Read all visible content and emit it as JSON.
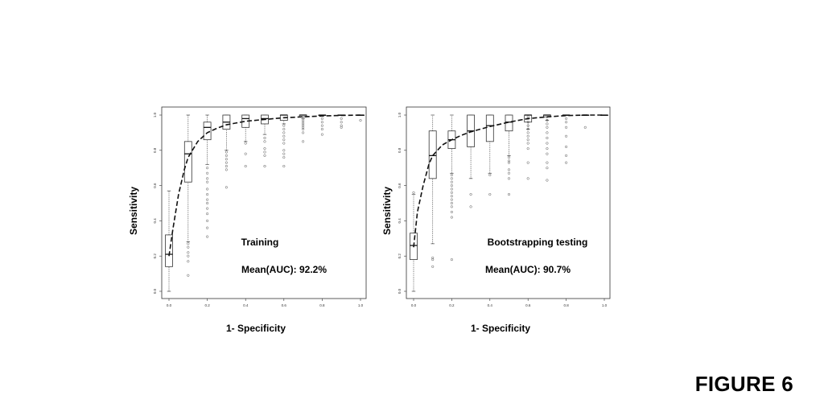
{
  "figure_label": "FIGURE 6",
  "chart_data": [
    {
      "type": "box",
      "title": "Training",
      "annotation": "Mean(AUC): 92.2%",
      "xlabel": "1- Specificity",
      "ylabel": "Sensitivity",
      "xlim": [
        0,
        1
      ],
      "ylim": [
        0,
        1
      ],
      "xticks": [
        "0.0",
        "0.2",
        "0.4",
        "0.6",
        "0.8",
        "1.0"
      ],
      "yticks": [
        "0.0",
        "0.2",
        "0.4",
        "0.6",
        "0.8",
        "1.0"
      ],
      "boxes": [
        {
          "x": 0.0,
          "q1": 0.14,
          "median": 0.21,
          "q3": 0.32,
          "whisker_low": 0.0,
          "whisker_high": 0.57,
          "outliers": []
        },
        {
          "x": 0.1,
          "q1": 0.62,
          "median": 0.78,
          "q3": 0.85,
          "whisker_low": 0.28,
          "whisker_high": 1.0,
          "outliers": [
            0.27,
            0.25,
            0.22,
            0.2,
            0.17,
            0.09
          ]
        },
        {
          "x": 0.2,
          "q1": 0.86,
          "median": 0.93,
          "q3": 0.96,
          "whisker_low": 0.72,
          "whisker_high": 1.0,
          "outliers": [
            0.7,
            0.67,
            0.64,
            0.62,
            0.58,
            0.55,
            0.52,
            0.5,
            0.47,
            0.44,
            0.4,
            0.36,
            0.31
          ]
        },
        {
          "x": 0.3,
          "q1": 0.92,
          "median": 0.96,
          "q3": 1.0,
          "whisker_low": 0.8,
          "whisker_high": 1.0,
          "outliers": [
            0.79,
            0.77,
            0.75,
            0.73,
            0.71,
            0.69,
            0.59
          ]
        },
        {
          "x": 0.4,
          "q1": 0.93,
          "median": 0.98,
          "q3": 1.0,
          "whisker_low": 0.85,
          "whisker_high": 1.0,
          "outliers": [
            0.84,
            0.78,
            0.71
          ]
        },
        {
          "x": 0.5,
          "q1": 0.95,
          "median": 0.98,
          "q3": 1.0,
          "whisker_low": 0.89,
          "whisker_high": 1.0,
          "outliers": [
            0.87,
            0.85,
            0.81,
            0.79,
            0.77,
            0.71
          ]
        },
        {
          "x": 0.6,
          "q1": 0.97,
          "median": 1.0,
          "q3": 1.0,
          "whisker_low": 0.95,
          "whisker_high": 1.0,
          "outliers": [
            0.94,
            0.92,
            0.9,
            0.88,
            0.86,
            0.84,
            0.8,
            0.78,
            0.76,
            0.71
          ]
        },
        {
          "x": 0.7,
          "q1": 0.99,
          "median": 1.0,
          "q3": 1.0,
          "whisker_low": 0.98,
          "whisker_high": 1.0,
          "outliers": [
            0.97,
            0.96,
            0.95,
            0.94,
            0.93,
            0.92,
            0.9,
            0.85
          ]
        },
        {
          "x": 0.8,
          "q1": 1.0,
          "median": 1.0,
          "q3": 1.0,
          "whisker_low": 1.0,
          "whisker_high": 1.0,
          "outliers": [
            0.98,
            0.96,
            0.94,
            0.92,
            0.89
          ]
        },
        {
          "x": 0.9,
          "q1": 1.0,
          "median": 1.0,
          "q3": 1.0,
          "whisker_low": 1.0,
          "whisker_high": 1.0,
          "outliers": [
            0.98,
            0.96,
            0.94,
            0.93
          ]
        },
        {
          "x": 1.0,
          "q1": 1.0,
          "median": 1.0,
          "q3": 1.0,
          "whisker_low": 1.0,
          "whisker_high": 1.0,
          "outliers": [
            0.97
          ]
        }
      ],
      "mean_curve": {
        "x": [
          0.0,
          0.02,
          0.05,
          0.08,
          0.1,
          0.15,
          0.2,
          0.25,
          0.3,
          0.35,
          0.4,
          0.5,
          0.6,
          0.7,
          0.8,
          0.9,
          1.0
        ],
        "y": [
          0.2,
          0.35,
          0.55,
          0.69,
          0.76,
          0.85,
          0.9,
          0.925,
          0.945,
          0.955,
          0.965,
          0.975,
          0.985,
          0.99,
          0.995,
          0.998,
          1.0
        ]
      }
    },
    {
      "type": "box",
      "title": "Bootstrapping testing",
      "annotation": "Mean(AUC): 90.7%",
      "xlabel": "1- Specificity",
      "ylabel": "Sensitivity",
      "xlim": [
        0,
        1
      ],
      "ylim": [
        0,
        1
      ],
      "xticks": [
        "0.0",
        "0.2",
        "0.4",
        "0.6",
        "0.8",
        "1.0"
      ],
      "yticks": [
        "0.0",
        "0.2",
        "0.4",
        "0.6",
        "0.8",
        "1.0"
      ],
      "boxes": [
        {
          "x": 0.0,
          "q1": 0.18,
          "median": 0.26,
          "q3": 0.33,
          "whisker_low": 0.0,
          "whisker_high": 0.55,
          "outliers": [
            0.56
          ]
        },
        {
          "x": 0.1,
          "q1": 0.64,
          "median": 0.77,
          "q3": 0.91,
          "whisker_low": 0.27,
          "whisker_high": 1.0,
          "outliers": [
            0.19,
            0.18,
            0.14
          ]
        },
        {
          "x": 0.2,
          "q1": 0.81,
          "median": 0.86,
          "q3": 0.91,
          "whisker_low": 0.67,
          "whisker_high": 1.0,
          "outliers": [
            0.66,
            0.64,
            0.62,
            0.6,
            0.58,
            0.56,
            0.54,
            0.52,
            0.5,
            0.48,
            0.45,
            0.42,
            0.18
          ]
        },
        {
          "x": 0.3,
          "q1": 0.82,
          "median": 0.91,
          "q3": 1.0,
          "whisker_low": 0.64,
          "whisker_high": 1.0,
          "outliers": [
            0.55,
            0.48
          ]
        },
        {
          "x": 0.4,
          "q1": 0.85,
          "median": 0.94,
          "q3": 1.0,
          "whisker_low": 0.67,
          "whisker_high": 1.0,
          "outliers": [
            0.66,
            0.55
          ]
        },
        {
          "x": 0.5,
          "q1": 0.91,
          "median": 0.96,
          "q3": 1.0,
          "whisker_low": 0.77,
          "whisker_high": 1.0,
          "outliers": [
            0.76,
            0.74,
            0.73,
            0.69,
            0.67,
            0.64,
            0.55
          ]
        },
        {
          "x": 0.6,
          "q1": 0.96,
          "median": 1.0,
          "q3": 1.0,
          "whisker_low": 0.92,
          "whisker_high": 1.0,
          "outliers": [
            0.99,
            0.98,
            0.96,
            0.94,
            0.92,
            0.9,
            0.88,
            0.86,
            0.84,
            0.81,
            0.73,
            0.64
          ]
        },
        {
          "x": 0.7,
          "q1": 0.99,
          "median": 1.0,
          "q3": 1.0,
          "whisker_low": 0.97,
          "whisker_high": 1.0,
          "outliers": [
            0.97,
            0.95,
            0.93,
            0.9,
            0.87,
            0.84,
            0.81,
            0.78,
            0.73,
            0.7,
            0.63
          ]
        },
        {
          "x": 0.8,
          "q1": 1.0,
          "median": 1.0,
          "q3": 1.0,
          "whisker_low": 1.0,
          "whisker_high": 1.0,
          "outliers": [
            0.98,
            0.96,
            0.93,
            0.88,
            0.82,
            0.77,
            0.73
          ]
        },
        {
          "x": 0.9,
          "q1": 1.0,
          "median": 1.0,
          "q3": 1.0,
          "whisker_low": 1.0,
          "whisker_high": 1.0,
          "outliers": [
            0.93
          ]
        },
        {
          "x": 1.0,
          "q1": 1.0,
          "median": 1.0,
          "q3": 1.0,
          "whisker_low": 1.0,
          "whisker_high": 1.0,
          "outliers": []
        }
      ],
      "mean_curve": {
        "x": [
          0.0,
          0.02,
          0.05,
          0.08,
          0.1,
          0.15,
          0.2,
          0.25,
          0.3,
          0.35,
          0.4,
          0.5,
          0.6,
          0.7,
          0.8,
          0.9,
          1.0
        ],
        "y": [
          0.25,
          0.45,
          0.6,
          0.72,
          0.77,
          0.83,
          0.86,
          0.885,
          0.905,
          0.92,
          0.935,
          0.96,
          0.98,
          0.99,
          0.997,
          1.0,
          1.0
        ]
      }
    }
  ]
}
